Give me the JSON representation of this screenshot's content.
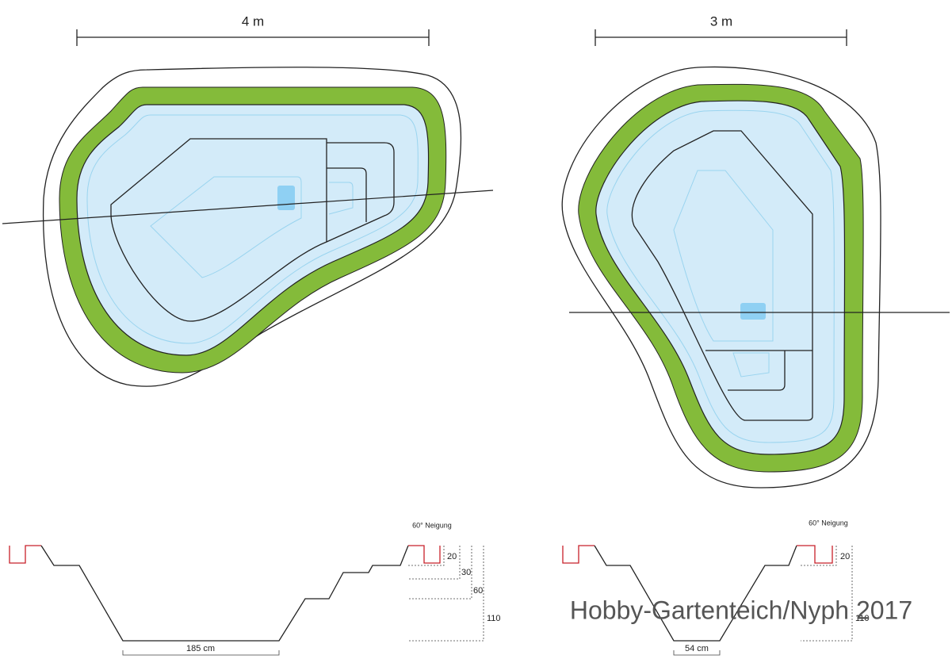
{
  "dimensions": {
    "left_width": "4 m",
    "right_width": "3 m"
  },
  "sections": [
    {
      "slope": "60° Neigung",
      "depths": [
        "20",
        "30",
        "60",
        "110"
      ],
      "bottom_width": "185 cm"
    },
    {
      "slope": "60° Neigung",
      "depths": [
        "20",
        "110"
      ],
      "bottom_width": "54 cm"
    }
  ],
  "watermark": "Hobby-Gartenteich/Nyph 2017"
}
